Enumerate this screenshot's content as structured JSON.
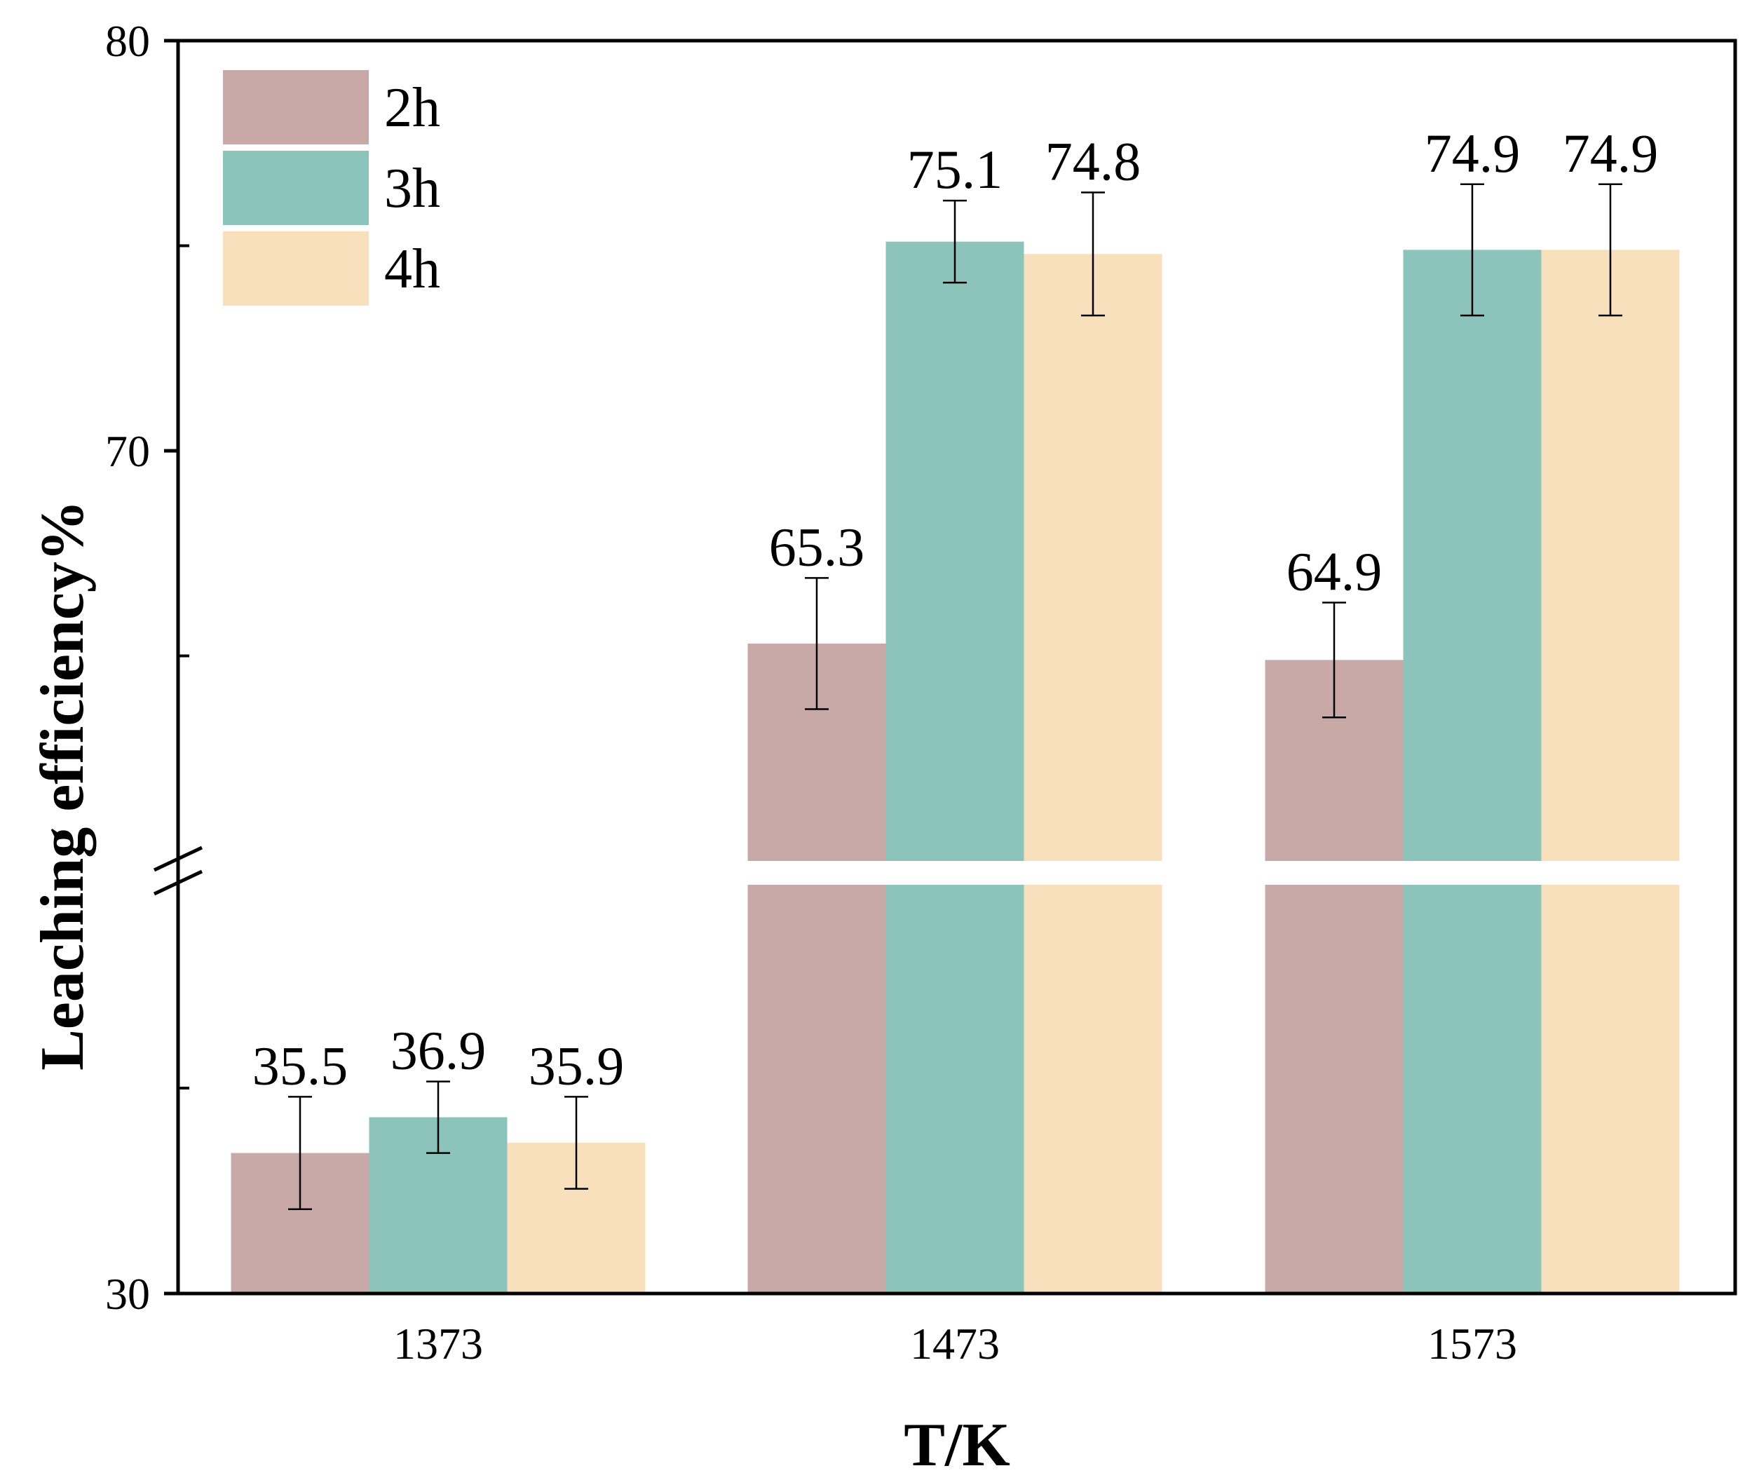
{
  "chart_data": {
    "type": "bar",
    "xlabel": "T/K",
    "ylabel": "Leaching efficiency%",
    "categories": [
      "1373",
      "1473",
      "1573"
    ],
    "series": [
      {
        "name": "2h",
        "values": [
          35.5,
          65.3,
          64.9
        ],
        "errors": [
          2.2,
          1.6,
          1.4
        ],
        "value_labels": [
          "35.5",
          "65.3",
          "64.9"
        ]
      },
      {
        "name": "3h",
        "values": [
          36.9,
          75.1,
          74.9
        ],
        "errors": [
          1.4,
          1.0,
          1.6
        ],
        "value_labels": [
          "36.9",
          "75.1",
          "74.9"
        ]
      },
      {
        "name": "4h",
        "values": [
          35.9,
          74.8,
          74.9
        ],
        "errors": [
          1.8,
          1.5,
          1.6
        ],
        "value_labels": [
          "35.9",
          "74.8",
          "74.9"
        ]
      }
    ],
    "ylim": [
      30,
      80
    ],
    "y_break": {
      "lower_segment": [
        30,
        46
      ],
      "upper_segment": [
        60,
        80
      ]
    },
    "yticks": [
      30,
      70,
      80
    ],
    "ytick_labels": [
      "30",
      "70",
      "80"
    ],
    "grid": false,
    "legend": "top-left",
    "colors": {
      "2h": "#c8a9a7",
      "3h": "#8cc3ba",
      "4h": "#f8e0bd"
    }
  }
}
